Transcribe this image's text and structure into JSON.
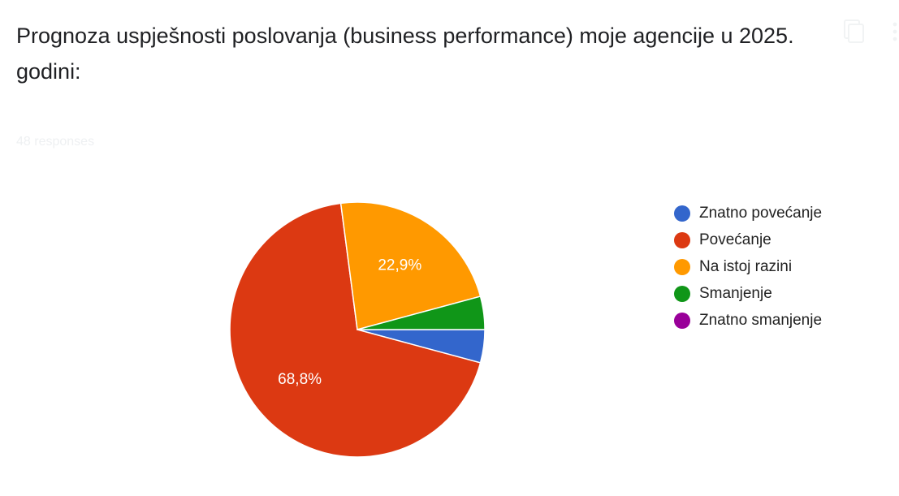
{
  "question": {
    "title": "Prognoza uspješnosti poslovanja (business performance) moje agencije u 2025. godini:",
    "response_count": "48 responses"
  },
  "toolbar": {
    "copy_icon": "copy-icon",
    "more_icon": "more-vert-icon"
  },
  "chart_data": {
    "type": "pie",
    "title": "",
    "categories": [
      "Znatno povećanje",
      "Povećanje",
      "Na istoj razini",
      "Smanjenje",
      "Znatno smanjenje"
    ],
    "values": [
      4.2,
      68.8,
      22.9,
      4.2,
      0
    ],
    "data_labels": [
      "",
      "68,8%",
      "22,9%",
      "",
      ""
    ],
    "colors": [
      "#3366cc",
      "#dc3912",
      "#ff9900",
      "#109618",
      "#990099"
    ],
    "legend_position": "right"
  }
}
